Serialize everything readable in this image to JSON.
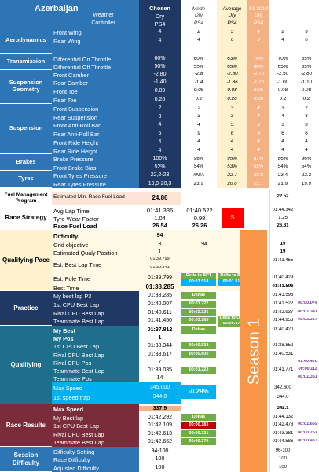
{
  "header": {
    "title": "Azerbaijan",
    "chosen": "Chosen",
    "mode": "Mode",
    "average": "Average",
    "f1_2019": "F1 2019",
    "weather_label": "Weather",
    "controller_label": "Controller",
    "weather_chosen": "Dry",
    "controller_chosen": "PS4",
    "weather_mode": "Dry",
    "controller_mode": "PS4",
    "weather_avg": "Dry",
    "controller_avg": "PS4",
    "weather_f1": "Dry",
    "controller_f1": "PS4"
  },
  "sections": {
    "aerodynamics": "Aerodynamics",
    "transmission": "Transmission",
    "suspension_geometry": "Suspension Geometry",
    "suspension": "Suspension",
    "brakes": "Brakes",
    "tyres": "Tyres",
    "fuel_management": "Fuel Management Program",
    "race_strategy": "Race Strategy",
    "qualifying_pace": "Qualifying Pace",
    "practice": "Practice",
    "qualifying": "Qualifying",
    "race_results": "Race Results",
    "session_difficulty": "Session Difficulty"
  },
  "setup_rows": [
    {
      "label": "Front Wing",
      "chosen": "4",
      "mode": "2",
      "avg": "3",
      "f1": "4",
      "x1": "2",
      "x2": "3"
    },
    {
      "label": "Rear Wing",
      "chosen": "4",
      "mode": "4",
      "avg": "6",
      "f1": "3",
      "x1": "4",
      "x2": "6"
    },
    {
      "label": "Differential On Throttle",
      "chosen": "60%",
      "mode": "60%",
      "avg": "63%",
      "f1": "70%",
      "x1": "70%",
      "x2": "55%"
    },
    {
      "label": "Differential Off Throttle",
      "chosen": "50%",
      "mode": "55%",
      "avg": "65%",
      "f1": "60%",
      "x1": "65%",
      "x2": "65%"
    },
    {
      "label": "Front Camber",
      "chosen": "-2.80",
      "mode": "-2.8",
      "avg": "-2.80",
      "f1": "-2.70",
      "x1": "-2.50",
      "x2": "-2.80"
    },
    {
      "label": "Rear Camber",
      "chosen": "-1.40",
      "mode": "-1.4",
      "avg": "-1.36",
      "f1": "-1.20",
      "x1": "-1.00",
      "x2": "-1.10"
    },
    {
      "label": "Front Toe",
      "chosen": "0.09",
      "mode": "0.08",
      "avg": "0.08",
      "f1": "0.05",
      "x1": "0.08",
      "x2": "0.08"
    },
    {
      "label": "Rear Toe",
      "chosen": "0.26",
      "mode": "0.2",
      "avg": "0.26",
      "f1": "0.28",
      "x1": "0.2",
      "x2": "0.2"
    },
    {
      "label": "Front Suspension",
      "chosen": "2",
      "mode": "2",
      "avg": "3",
      "f1": "4",
      "x1": "3",
      "x2": "2"
    },
    {
      "label": "Rear Suspension",
      "chosen": "3",
      "mode": "3",
      "avg": "3",
      "f1": "4",
      "x1": "4",
      "x2": "3"
    },
    {
      "label": "Front Anti-Roll Bar",
      "chosen": "4",
      "mode": "4",
      "avg": "3",
      "f1": "3",
      "x1": "3",
      "x2": "3"
    },
    {
      "label": "Rear Anti-Roll Bar",
      "chosen": "6",
      "mode": "9",
      "avg": "6",
      "f1": "9",
      "x1": "6",
      "x2": "6"
    },
    {
      "label": "Front Ride Height",
      "chosen": "4",
      "mode": "4",
      "avg": "4",
      "f1": "4",
      "x1": "4",
      "x2": "4"
    },
    {
      "label": "Rear Ride Height",
      "chosen": "4",
      "mode": "4",
      "avg": "4",
      "f1": "4",
      "x1": "4",
      "x2": "4"
    },
    {
      "label": "Brake Pressure",
      "chosen": "100%",
      "mode": "96%",
      "avg": "95%",
      "f1": "87%",
      "x1": "86%",
      "x2": "96%"
    },
    {
      "label": "Front Brake Bias",
      "chosen": "52%",
      "mode": "54%",
      "avg": "53%",
      "f1": "55%",
      "x1": "54%",
      "x2": "54%"
    },
    {
      "label": "Front Tyres Pressure",
      "chosen": "22,2-23",
      "mode": "#N/A",
      "avg": "22.7",
      "f1": "23.0",
      "x1": "23.4",
      "x2": "22.2"
    },
    {
      "label": "Rear Tyres Pressure",
      "chosen": "19,9-20,3",
      "mode": "21.9",
      "avg": "20.6",
      "f1": "21.1",
      "x1": "21.9",
      "x2": "19.9"
    }
  ],
  "fuel": {
    "label": "Estimated Min. Race Fuel Load",
    "value": "24.86",
    "extra": "22.52"
  },
  "race_strategy": [
    {
      "label": "Avg Lap Time",
      "chosen": "01:41.336",
      "mode": "01:40.522",
      "extra": "01:44.342"
    },
    {
      "label": "Tyre Wear Factor",
      "chosen": "1.04",
      "mode": "0.98",
      "extra": "1.25"
    },
    {
      "label": "Race Fuel Load",
      "chosen": "26.54",
      "mode": "26.26",
      "extra": "26.81"
    }
  ],
  "race_strategy_badge": "S",
  "qualifying_pace": {
    "difficulty_label": "Difficulty",
    "difficulty": "94",
    "grid_label": "Grid objective",
    "grid": "3",
    "grid_mode": "94",
    "grid_extra": "19",
    "est_pos_label": "Estimated Qualy Position",
    "est_pos": "1",
    "est_pos_extra": "19",
    "best_lap_label": "Est. Best Lap Time",
    "best_lap_a": "01:39.799",
    "best_lap_b": "01:39.841",
    "best_lap_extra": "01:41.455",
    "pole_label": "Est. Pole Time",
    "pole": "01:39.799",
    "pole_badge": "Delta to SPT",
    "pole_delta": "00:01.514",
    "pole_extra": "01:40.429",
    "best_time_label": "Best Time",
    "best_time": "01:38.285",
    "best_badge": "Delta to BBI",
    "best_delta": "00:01.514",
    "best_extra": "01:41.596"
  },
  "practice": [
    {
      "label": "My best lap P3",
      "chosen": "01:38.285",
      "badge": "Deltas",
      "badge_kind": "grn",
      "extra": "01:41.596",
      "lav": ""
    },
    {
      "label": "1st CPU Best Lap",
      "chosen": "01:40.007",
      "badge": "00:01.722",
      "badge_kind": "grn",
      "extra": "01:41.522",
      "lav": "00:00.074"
    },
    {
      "label": "Rival CPU Best Lap",
      "chosen": "01:40.611",
      "badge": "00:02.326",
      "badge_kind": "grn",
      "extra": "01:42.937",
      "lav": "00:01.341"
    },
    {
      "label": "Teammate Best Lap",
      "chosen": "01:41.450",
      "badge": "00:03.165",
      "badge_kind": "grn",
      "extra": "01:44.953",
      "lav": "00:03.357"
    }
  ],
  "practice_delta_qfp": "Delta to QFP",
  "practice_delta_qfp_val": "00:00.473",
  "qualifying": [
    {
      "label": "My Best",
      "chosen": "01:37.812",
      "badge": "Deltas",
      "badge_kind": "grn",
      "extra": "01:40.420",
      "lav": ""
    },
    {
      "label": "My Pos",
      "chosen": "1",
      "badge": "",
      "badge_kind": "",
      "extra": "",
      "lav": ""
    },
    {
      "label": "1st CPU Best Lap",
      "chosen": "01:38.344",
      "badge": "00:00.532",
      "badge_kind": "grn",
      "extra": "01:38.852",
      "lav": ""
    },
    {
      "label": "Rival CPU Best Lap",
      "chosen": "01:38.617",
      "badge": "00:00.805",
      "badge_kind": "grn",
      "extra": "01:40.531",
      "lav": ""
    },
    {
      "label": "Rival CPU Pos",
      "chosen": "7",
      "badge": "",
      "badge_kind": "",
      "extra": "",
      "lav": "01:40.420"
    },
    {
      "label": "Teammate Best Lap",
      "chosen": "01:39.035",
      "badge": "00:01.223",
      "badge_kind": "grn",
      "extra": "01:41.771",
      "lav": "00:00.111"
    },
    {
      "label": "Teammate Pos",
      "chosen": "14",
      "badge": "",
      "badge_kind": "",
      "extra": "",
      "lav": "00:01.351"
    }
  ],
  "speed": {
    "max_label": "Max Speed",
    "max": "345.000",
    "pct": "-0.29%",
    "max_extra": "342.600",
    "trap_label": "1st speed trap",
    "trap": "344.0",
    "trap_extra": "344.0"
  },
  "race_results": [
    {
      "label": "Max Speed",
      "chosen": "337.9",
      "badge": "",
      "badge_kind": "",
      "extra": "342.1",
      "lav": ""
    },
    {
      "label": "My Best lap",
      "chosen": "01:42.292",
      "badge": "Deltas",
      "badge_kind": "grn",
      "extra": "01:44.132",
      "lav": ""
    },
    {
      "label": "1st CPU Best Lap",
      "chosen": "01:42.109",
      "badge": "00:00.183",
      "badge_kind": "red",
      "extra": "01:42.473",
      "lav": "00:01.659"
    },
    {
      "label": "Rival CPU Best Lap",
      "chosen": "01:42.613",
      "badge": "00:00.321",
      "badge_kind": "grn",
      "extra": "01:43.381",
      "lav": "00:00.751"
    },
    {
      "label": "Teammate Best Lap",
      "chosen": "01:42.662",
      "badge": "00:00.370",
      "badge_kind": "grn",
      "extra": "01:44.586",
      "lav": "00:00.453"
    }
  ],
  "session_difficulty": [
    {
      "label": "Difficulty Setting",
      "chosen": "94-100",
      "extra": "96-100"
    },
    {
      "label": "Race Difficulty",
      "chosen": "100",
      "extra": "100"
    },
    {
      "label": "Adjusted Difficulty",
      "chosen": "100",
      "extra": "100"
    }
  ],
  "season_label": "Season 1",
  "colors": {
    "blue": "#2e75b6",
    "navy": "#1f3864",
    "orange": "#f79646",
    "green": "#70ad47",
    "red": "#c00000",
    "cyan": "#00b0f0",
    "yellow_light": "#fff2cc"
  }
}
